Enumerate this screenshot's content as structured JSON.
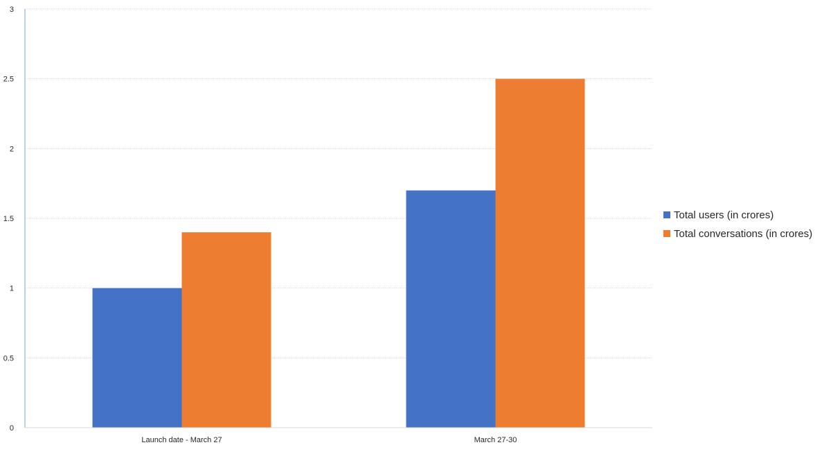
{
  "chart_data": {
    "type": "bar",
    "title": "",
    "xlabel": "",
    "ylabel": "",
    "categories": [
      "Launch  date - March 27",
      "March 27-30"
    ],
    "series": [
      {
        "name": "Total users (in crores)",
        "values": [
          1.0,
          1.7
        ],
        "color": "#4472c4"
      },
      {
        "name": "Total conversations (in crores)",
        "values": [
          1.4,
          2.5
        ],
        "color": "#ed7d31"
      }
    ],
    "ylim": [
      0,
      3
    ],
    "yticks": [
      0,
      0.5,
      1,
      1.5,
      2,
      2.5,
      3
    ],
    "ytick_labels": [
      "0",
      "0.5",
      "1",
      "1.5",
      "2",
      "2.5",
      "3"
    ],
    "grid": true,
    "legend_position": "right"
  }
}
